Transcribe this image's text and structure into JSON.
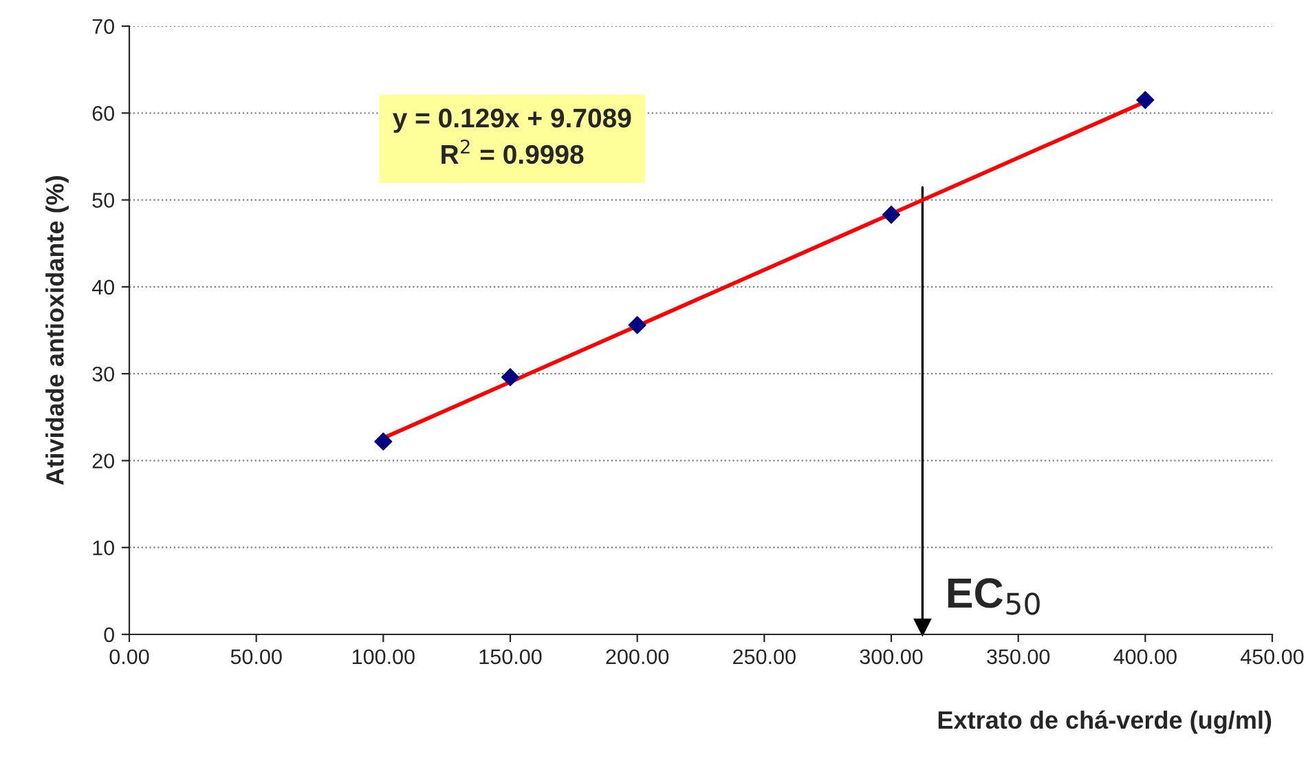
{
  "chart_data": {
    "type": "scatter",
    "xlabel": "Extrato de chá-verde (ug/ml)",
    "ylabel": "Atividade antioxidante (%)",
    "series": [
      {
        "color": "#000080",
        "marker": "diamond",
        "x": [
          100,
          150,
          200,
          300,
          400
        ],
        "values": [
          22.2,
          29.6,
          35.6,
          48.3,
          61.5
        ]
      },
      {
        "type": "line",
        "color": "#ff0000",
        "marker": "none",
        "x": [
          100,
          400
        ],
        "values": [
          22.6,
          61.3
        ]
      }
    ],
    "annotations": [
      "y = 0.129x + 9.7089\nR$^{2}$ = 0.9998"
    ],
    "ref_lines": [
      {
        "axis": "x",
        "value": 312.3,
        "label": "EC$_{50}$"
      }
    ],
    "xlim": [
      0,
      450
    ],
    "xticks": [
      {
        "value": 0,
        "label": "0.00"
      },
      {
        "value": 50,
        "label": "50.00"
      },
      {
        "value": 100,
        "label": "100.00"
      },
      {
        "value": 150,
        "label": "150.00"
      },
      {
        "value": 200,
        "label": "200.00"
      },
      {
        "value": 250,
        "label": "250.00"
      },
      {
        "value": 300,
        "label": "300.00"
      },
      {
        "value": 350,
        "label": "350.00"
      },
      {
        "value": 400,
        "label": "400.00"
      },
      {
        "value": 450,
        "label": "450.00"
      }
    ],
    "ylim": [
      0,
      70
    ],
    "yticks": [
      0,
      10,
      20,
      30,
      40,
      50,
      60,
      70
    ],
    "grid": "y",
    "legend": false
  }
}
